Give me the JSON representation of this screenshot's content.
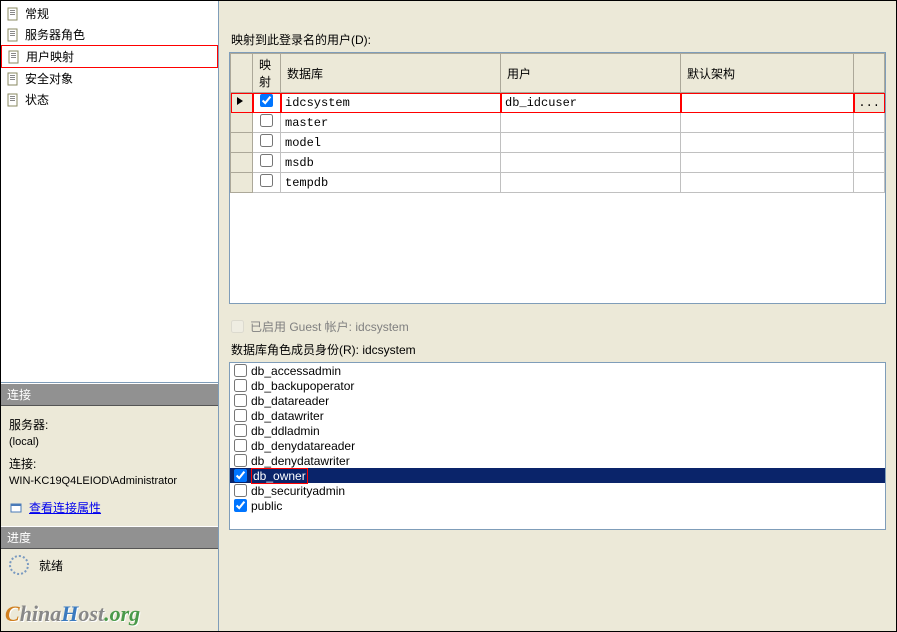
{
  "nav": {
    "items": [
      {
        "label": "常规",
        "icon": "page"
      },
      {
        "label": "服务器角色",
        "icon": "page"
      },
      {
        "label": "用户映射",
        "icon": "page",
        "selected": true
      },
      {
        "label": "安全对象",
        "icon": "page"
      },
      {
        "label": "状态",
        "icon": "page"
      }
    ]
  },
  "connection": {
    "header": "连接",
    "server_label": "服务器:",
    "server_value": "(local)",
    "conn_label": "连接:",
    "conn_value": "WIN-KC19Q4LEIOD\\Administrator",
    "link_label": "查看连接属性"
  },
  "progress": {
    "header": "进度",
    "status": "就绪"
  },
  "mapping": {
    "label": "映射到此登录名的用户(D):",
    "columns": {
      "map": "映射",
      "database": "数据库",
      "user": "用户",
      "schema": "默认架构"
    },
    "rows": [
      {
        "checked": true,
        "database": "idcsystem",
        "user": "db_idcuser",
        "schema": "",
        "highlight": true,
        "current": true
      },
      {
        "checked": false,
        "database": "master",
        "user": "",
        "schema": ""
      },
      {
        "checked": false,
        "database": "model",
        "user": "",
        "schema": ""
      },
      {
        "checked": false,
        "database": "msdb",
        "user": "",
        "schema": ""
      },
      {
        "checked": false,
        "database": "tempdb",
        "user": "",
        "schema": ""
      }
    ]
  },
  "guest": {
    "label": "已启用 Guest 帐户: idcsystem"
  },
  "roles": {
    "label": "数据库角色成员身份(R): idcsystem",
    "items": [
      {
        "name": "db_accessadmin",
        "checked": false
      },
      {
        "name": "db_backupoperator",
        "checked": false
      },
      {
        "name": "db_datareader",
        "checked": false
      },
      {
        "name": "db_datawriter",
        "checked": false
      },
      {
        "name": "db_ddladmin",
        "checked": false
      },
      {
        "name": "db_denydatareader",
        "checked": false
      },
      {
        "name": "db_denydatawriter",
        "checked": false,
        "redbox_below": true
      },
      {
        "name": "db_owner",
        "checked": true,
        "selected": true,
        "redbox": true
      },
      {
        "name": "db_securityadmin",
        "checked": false
      },
      {
        "name": "public",
        "checked": true
      }
    ]
  },
  "watermark": {
    "c": "C",
    "hina": "hina",
    "h": "H",
    "ost": "ost",
    "org": ".org"
  }
}
